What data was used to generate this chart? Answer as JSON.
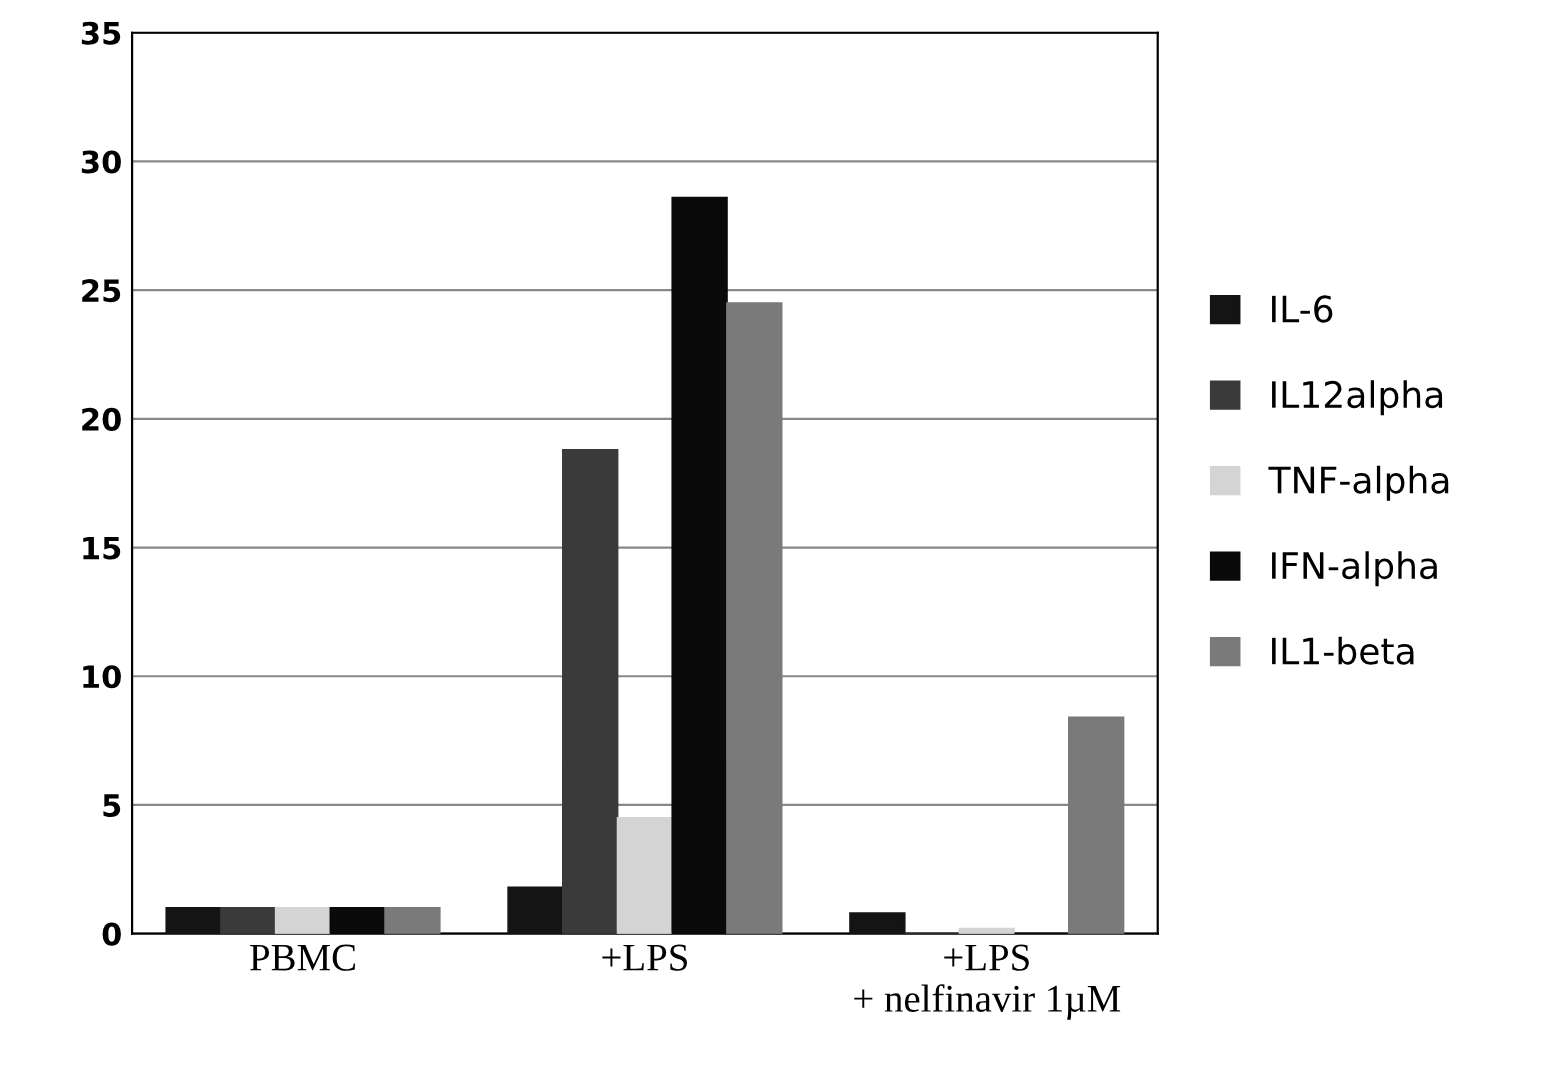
{
  "chart_data": {
    "type": "bar",
    "categories": [
      "PBMC",
      "+LPS",
      "+LPS\n+ nelfinavir 1µM"
    ],
    "series": [
      {
        "name": "IL-6",
        "color": "#141414",
        "values": [
          1,
          1.8,
          0.8
        ]
      },
      {
        "name": "IL12alpha",
        "color": "#3a3a3a",
        "values": [
          1,
          18.8,
          0
        ]
      },
      {
        "name": "TNF-alpha",
        "color": "#d4d4d4",
        "values": [
          1,
          4.5,
          0.2
        ]
      },
      {
        "name": "IFN-alpha",
        "color": "#0a0a0a",
        "values": [
          1,
          28.6,
          0
        ]
      },
      {
        "name": "IL1-beta",
        "color": "#7a7a7a",
        "values": [
          1,
          24.5,
          8.4
        ]
      }
    ],
    "ylim": [
      0,
      35
    ],
    "yticks": [
      0,
      5,
      10,
      15,
      20,
      25,
      30,
      35
    ],
    "grid": "y",
    "legend": "right"
  }
}
